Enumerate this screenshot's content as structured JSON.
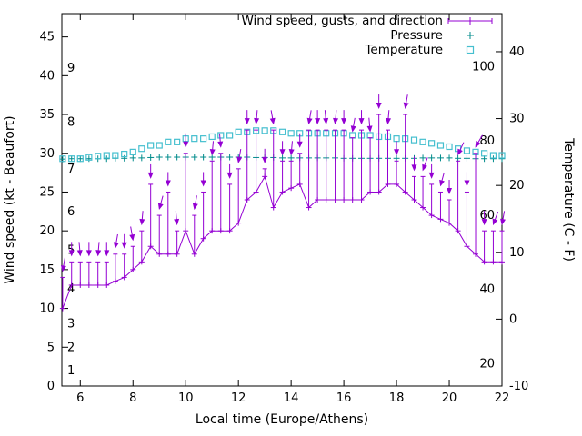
{
  "chart_data": {
    "type": "line",
    "title": "",
    "xlabel": "Local time (Europe/Athens)",
    "ylabel_left": "Wind speed (kt - Beaufort)",
    "ylabel_right": "Temperature (C - F)",
    "xlim": [
      5.3,
      22
    ],
    "ylim_left": [
      0,
      48
    ],
    "ylim_right": [
      -10,
      45.7
    ],
    "xticks": [
      6,
      8,
      10,
      12,
      14,
      16,
      18,
      20,
      22
    ],
    "yticks_left": [
      0,
      5,
      10,
      15,
      20,
      25,
      30,
      35,
      40,
      45
    ],
    "yticks_right": [
      -10,
      0,
      10,
      20,
      30,
      40
    ],
    "beaufort_labels": [
      {
        "label": "1",
        "kt": 2
      },
      {
        "label": "2",
        "kt": 5
      },
      {
        "label": "3",
        "kt": 8
      },
      {
        "label": "4",
        "kt": 12.5
      },
      {
        "label": "5",
        "kt": 17.5
      },
      {
        "label": "6",
        "kt": 22.5
      },
      {
        "label": "7",
        "kt": 28
      },
      {
        "label": "8",
        "kt": 34
      },
      {
        "label": "9",
        "kt": 41
      }
    ],
    "fahrenheit_labels": [
      {
        "label": "20",
        "f": 20
      },
      {
        "label": "40",
        "f": 40
      },
      {
        "label": "60",
        "f": 60
      },
      {
        "label": "80",
        "f": 80
      },
      {
        "label": "100",
        "f": 100
      }
    ],
    "legend": [
      {
        "label": "Wind speed, gusts, and direction",
        "color": "#9400d3",
        "marker": "line-plus"
      },
      {
        "label": "Pressure",
        "color": "#008b8b",
        "marker": "plus"
      },
      {
        "label": "Temperature",
        "color": "#45bfcf",
        "marker": "square"
      }
    ],
    "colors": {
      "wind": "#9400d3",
      "pressure": "#008b8b",
      "temperature": "#45bfcf",
      "axis": "#000000"
    },
    "x": [
      5.33,
      5.67,
      6,
      6.33,
      6.67,
      7,
      7.33,
      7.67,
      8,
      8.33,
      8.67,
      9,
      9.33,
      9.67,
      10,
      10.33,
      10.67,
      11,
      11.33,
      11.67,
      12,
      12.33,
      12.67,
      13,
      13.33,
      13.67,
      14,
      14.33,
      14.67,
      15,
      15.33,
      15.67,
      16,
      16.33,
      16.67,
      17,
      17.33,
      17.67,
      18,
      18.33,
      18.67,
      19,
      19.33,
      19.67,
      20,
      20.33,
      20.67,
      21,
      21.33,
      21.67,
      22
    ],
    "series": [
      {
        "name": "wind_speed_kt",
        "axis": "left",
        "values": [
          10,
          13,
          13,
          13,
          13,
          13,
          13.5,
          14,
          15,
          16,
          18,
          17,
          17,
          17,
          20,
          17,
          19,
          20,
          20,
          20,
          21,
          24,
          25,
          27,
          23,
          25,
          25.5,
          26,
          23,
          24,
          24,
          24,
          24,
          24,
          24,
          25,
          25,
          26,
          26,
          25,
          24,
          23,
          22,
          21.5,
          21,
          20,
          18,
          17,
          16,
          16,
          16
        ]
      },
      {
        "name": "gust_kt",
        "axis": "left",
        "values": [
          14,
          16,
          16,
          16,
          16,
          16,
          17,
          17,
          18,
          20,
          26,
          22,
          25,
          20,
          30,
          22,
          25,
          29,
          30,
          26,
          28,
          33,
          33,
          28,
          33,
          29,
          29,
          30,
          33,
          33,
          33,
          33,
          33,
          32,
          33,
          32,
          35,
          33,
          29,
          35,
          27,
          27,
          26,
          25,
          24,
          29,
          25,
          30,
          20,
          20,
          20
        ]
      },
      {
        "name": "direction_deg",
        "axis": "none",
        "values": [
          10,
          0,
          -5,
          0,
          5,
          0,
          10,
          0,
          -10,
          5,
          0,
          15,
          0,
          -5,
          0,
          10,
          0,
          5,
          -5,
          0,
          10,
          0,
          5,
          0,
          -10,
          0,
          5,
          0,
          10,
          0,
          -5,
          5,
          0,
          10,
          0,
          -5,
          0,
          5,
          0,
          10,
          0,
          20,
          0,
          15,
          0,
          25,
          0,
          30,
          0,
          20,
          10
        ]
      },
      {
        "name": "pressure",
        "axis": "left",
        "values": [
          29.25,
          29.3,
          29.3,
          29.3,
          29.3,
          29.3,
          29.35,
          29.35,
          29.4,
          29.4,
          29.45,
          29.5,
          29.5,
          29.5,
          29.5,
          29.5,
          29.5,
          29.5,
          29.5,
          29.5,
          29.5,
          29.5,
          29.45,
          29.45,
          29.45,
          29.4,
          29.4,
          29.4,
          29.4,
          29.4,
          29.4,
          29.4,
          29.35,
          29.35,
          29.35,
          29.35,
          29.35,
          29.35,
          29.35,
          29.35,
          29.35,
          29.4,
          29.4,
          29.4,
          29.4,
          29.35,
          29.35,
          29.3,
          29.3,
          29.3,
          29.3
        ]
      },
      {
        "name": "temperature_c",
        "axis": "right",
        "values": [
          24,
          24,
          24,
          24.2,
          24.4,
          24.5,
          24.5,
          24.7,
          25,
          25.5,
          26,
          26,
          26.5,
          26.5,
          27,
          27,
          27,
          27.3,
          27.5,
          27.5,
          28,
          28,
          28.2,
          28.2,
          28.2,
          28,
          27.8,
          27.8,
          27.8,
          27.8,
          27.8,
          27.8,
          27.8,
          27.5,
          27.5,
          27.5,
          27.3,
          27.3,
          27,
          27,
          26.8,
          26.5,
          26.3,
          26,
          25.8,
          25.5,
          25.2,
          25,
          24.8,
          24.5,
          24.5
        ]
      }
    ]
  }
}
